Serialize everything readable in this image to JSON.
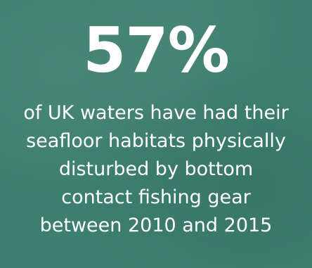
{
  "stat": {
    "value": "57%"
  },
  "caption": {
    "lines": [
      "of UK waters have had their",
      "seafloor habitats physically",
      "disturbed by bottom",
      "contact fishing gear",
      "between 2010 and 2015"
    ]
  },
  "colors": {
    "background": "#3d7f6e",
    "text": "#ffffff"
  }
}
